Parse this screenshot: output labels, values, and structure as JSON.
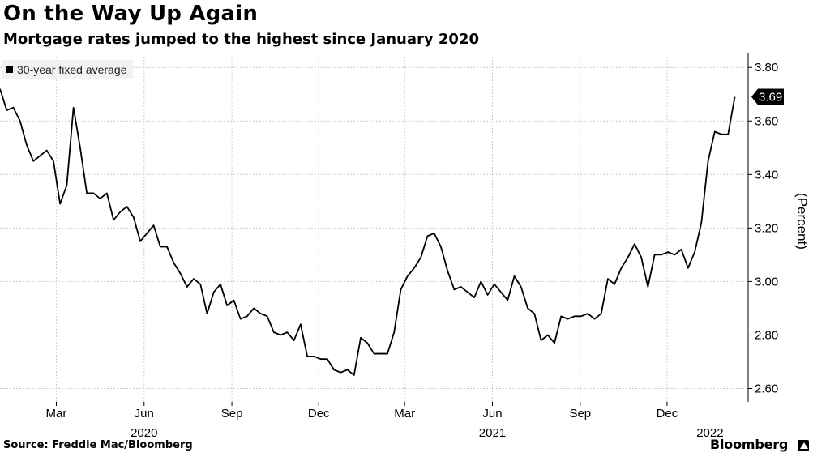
{
  "header": {
    "title": "On the Way Up Again",
    "subtitle": "Mortgage rates jumped to the highest since January 2020"
  },
  "footer": {
    "source": "Source: Freddie Mac/Bloomberg",
    "brand": "Bloomberg"
  },
  "colors": {
    "line": "#000000",
    "grid": "#cccccc",
    "legend_bg": "#f2f2f2"
  },
  "chart_data": {
    "type": "line",
    "x_type": "date",
    "series": [
      {
        "name": "30-year fixed average",
        "last_label": "3.69",
        "points": [
          [
            "2020-01-02",
            3.72
          ],
          [
            "2020-01-09",
            3.64
          ],
          [
            "2020-01-16",
            3.65
          ],
          [
            "2020-01-23",
            3.6
          ],
          [
            "2020-01-30",
            3.51
          ],
          [
            "2020-02-06",
            3.45
          ],
          [
            "2020-02-13",
            3.47
          ],
          [
            "2020-02-20",
            3.49
          ],
          [
            "2020-02-27",
            3.45
          ],
          [
            "2020-03-05",
            3.29
          ],
          [
            "2020-03-12",
            3.36
          ],
          [
            "2020-03-19",
            3.65
          ],
          [
            "2020-03-26",
            3.5
          ],
          [
            "2020-04-02",
            3.33
          ],
          [
            "2020-04-09",
            3.33
          ],
          [
            "2020-04-16",
            3.31
          ],
          [
            "2020-04-23",
            3.33
          ],
          [
            "2020-04-30",
            3.23
          ],
          [
            "2020-05-07",
            3.26
          ],
          [
            "2020-05-14",
            3.28
          ],
          [
            "2020-05-21",
            3.24
          ],
          [
            "2020-05-28",
            3.15
          ],
          [
            "2020-06-04",
            3.18
          ],
          [
            "2020-06-11",
            3.21
          ],
          [
            "2020-06-18",
            3.13
          ],
          [
            "2020-06-25",
            3.13
          ],
          [
            "2020-07-02",
            3.07
          ],
          [
            "2020-07-09",
            3.03
          ],
          [
            "2020-07-16",
            2.98
          ],
          [
            "2020-07-23",
            3.01
          ],
          [
            "2020-07-30",
            2.99
          ],
          [
            "2020-08-06",
            2.88
          ],
          [
            "2020-08-13",
            2.96
          ],
          [
            "2020-08-20",
            2.99
          ],
          [
            "2020-08-27",
            2.91
          ],
          [
            "2020-09-03",
            2.93
          ],
          [
            "2020-09-10",
            2.86
          ],
          [
            "2020-09-17",
            2.87
          ],
          [
            "2020-09-24",
            2.9
          ],
          [
            "2020-10-01",
            2.88
          ],
          [
            "2020-10-08",
            2.87
          ],
          [
            "2020-10-15",
            2.81
          ],
          [
            "2020-10-22",
            2.8
          ],
          [
            "2020-10-29",
            2.81
          ],
          [
            "2020-11-05",
            2.78
          ],
          [
            "2020-11-12",
            2.84
          ],
          [
            "2020-11-19",
            2.72
          ],
          [
            "2020-11-26",
            2.72
          ],
          [
            "2020-12-03",
            2.71
          ],
          [
            "2020-12-10",
            2.71
          ],
          [
            "2020-12-17",
            2.67
          ],
          [
            "2020-12-24",
            2.66
          ],
          [
            "2020-12-31",
            2.67
          ],
          [
            "2021-01-07",
            2.65
          ],
          [
            "2021-01-14",
            2.79
          ],
          [
            "2021-01-21",
            2.77
          ],
          [
            "2021-01-28",
            2.73
          ],
          [
            "2021-02-04",
            2.73
          ],
          [
            "2021-02-11",
            2.73
          ],
          [
            "2021-02-18",
            2.81
          ],
          [
            "2021-02-25",
            2.97
          ],
          [
            "2021-03-04",
            3.02
          ],
          [
            "2021-03-11",
            3.05
          ],
          [
            "2021-03-18",
            3.09
          ],
          [
            "2021-03-25",
            3.17
          ],
          [
            "2021-04-01",
            3.18
          ],
          [
            "2021-04-08",
            3.13
          ],
          [
            "2021-04-15",
            3.04
          ],
          [
            "2021-04-22",
            2.97
          ],
          [
            "2021-04-29",
            2.98
          ],
          [
            "2021-05-06",
            2.96
          ],
          [
            "2021-05-13",
            2.94
          ],
          [
            "2021-05-20",
            3.0
          ],
          [
            "2021-05-27",
            2.95
          ],
          [
            "2021-06-03",
            2.99
          ],
          [
            "2021-06-10",
            2.96
          ],
          [
            "2021-06-17",
            2.93
          ],
          [
            "2021-06-24",
            3.02
          ],
          [
            "2021-07-01",
            2.98
          ],
          [
            "2021-07-08",
            2.9
          ],
          [
            "2021-07-15",
            2.88
          ],
          [
            "2021-07-22",
            2.78
          ],
          [
            "2021-07-29",
            2.8
          ],
          [
            "2021-08-05",
            2.77
          ],
          [
            "2021-08-12",
            2.87
          ],
          [
            "2021-08-19",
            2.86
          ],
          [
            "2021-08-26",
            2.87
          ],
          [
            "2021-09-02",
            2.87
          ],
          [
            "2021-09-09",
            2.88
          ],
          [
            "2021-09-16",
            2.86
          ],
          [
            "2021-09-23",
            2.88
          ],
          [
            "2021-09-30",
            3.01
          ],
          [
            "2021-10-07",
            2.99
          ],
          [
            "2021-10-14",
            3.05
          ],
          [
            "2021-10-21",
            3.09
          ],
          [
            "2021-10-28",
            3.14
          ],
          [
            "2021-11-04",
            3.09
          ],
          [
            "2021-11-11",
            2.98
          ],
          [
            "2021-11-18",
            3.1
          ],
          [
            "2021-11-25",
            3.1
          ],
          [
            "2021-12-02",
            3.11
          ],
          [
            "2021-12-09",
            3.1
          ],
          [
            "2021-12-16",
            3.12
          ],
          [
            "2021-12-23",
            3.05
          ],
          [
            "2021-12-30",
            3.11
          ],
          [
            "2022-01-06",
            3.22
          ],
          [
            "2022-01-13",
            3.45
          ],
          [
            "2022-01-20",
            3.56
          ],
          [
            "2022-01-27",
            3.55
          ],
          [
            "2022-02-03",
            3.55
          ],
          [
            "2022-02-10",
            3.69
          ]
        ]
      }
    ],
    "title": "On the Way Up Again",
    "subtitle": "Mortgage rates jumped to the highest since January 2020",
    "ylabel": "(Percent)",
    "xlabel": "",
    "ylim": [
      2.55,
      3.84
    ],
    "xlim": [
      "2020-01-02",
      "2022-02-24"
    ],
    "yticks": [
      2.6,
      2.8,
      3.0,
      3.2,
      3.4,
      3.6,
      3.8
    ],
    "ytick_labels": [
      "2.60",
      "2.80",
      "3.00",
      "3.20",
      "3.40",
      "3.60",
      "3.80"
    ],
    "xticks": [
      {
        "date": "2020-03-01",
        "label": "Mar"
      },
      {
        "date": "2020-06-01",
        "label": "Jun"
      },
      {
        "date": "2020-09-01",
        "label": "Sep"
      },
      {
        "date": "2020-12-01",
        "label": "Dec"
      },
      {
        "date": "2021-03-01",
        "label": "Mar"
      },
      {
        "date": "2021-06-01",
        "label": "Jun"
      },
      {
        "date": "2021-09-01",
        "label": "Sep"
      },
      {
        "date": "2021-12-01",
        "label": "Dec"
      }
    ],
    "year_labels": [
      {
        "date": "2020-06-01",
        "label": "2020"
      },
      {
        "date": "2021-06-01",
        "label": "2021"
      },
      {
        "date": "2022-01-15",
        "label": "2022"
      }
    ],
    "grid": true,
    "legend_position": "top-left",
    "y_axis_side": "right"
  }
}
